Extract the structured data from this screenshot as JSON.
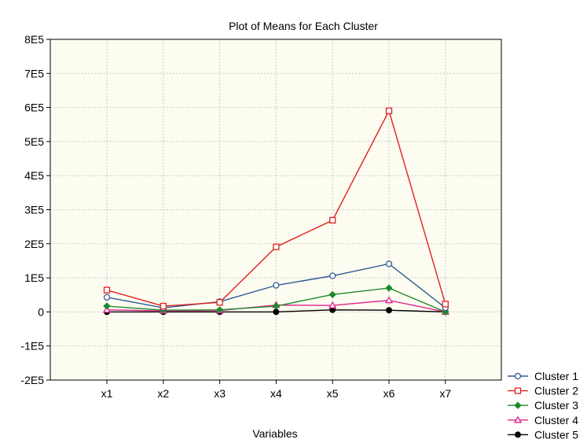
{
  "chart_data": {
    "type": "line",
    "title": "Plot of Means for Each Cluster",
    "xlabel": "Variables",
    "ylabel": "",
    "categories": [
      "x1",
      "x2",
      "x3",
      "x4",
      "x5",
      "x6",
      "x7"
    ],
    "ylim": [
      -200000,
      800000
    ],
    "yticks": [
      -200000,
      -100000,
      0,
      100000,
      200000,
      300000,
      400000,
      500000,
      600000,
      700000,
      800000
    ],
    "ytick_labels": [
      "-2E5",
      "-1E5",
      "0",
      "1E5",
      "2E5",
      "3E5",
      "4E5",
      "5E5",
      "6E5",
      "7E5",
      "8E5"
    ],
    "grid": true,
    "legend_position": "bottom-right outside",
    "plot_background": "#fcfcf0",
    "series": [
      {
        "name": "Cluster  1",
        "color": "#2e5a95",
        "marker": "circle-open",
        "values": [
          43000,
          12000,
          30000,
          78000,
          106000,
          141000,
          12000
        ]
      },
      {
        "name": "Cluster  2",
        "color": "#e02020",
        "marker": "square-open",
        "values": [
          64000,
          17000,
          28000,
          191000,
          269000,
          590000,
          23000
        ]
      },
      {
        "name": "Cluster  3",
        "color": "#1f8a2c",
        "marker": "diamond",
        "values": [
          17000,
          5000,
          6000,
          17000,
          51000,
          70000,
          0
        ]
      },
      {
        "name": "Cluster  4",
        "color": "#e0208c",
        "marker": "triangle-open",
        "values": [
          6000,
          3000,
          4000,
          20000,
          19000,
          34000,
          0
        ]
      },
      {
        "name": "Cluster  5",
        "color": "#000000",
        "marker": "circle-filled",
        "values": [
          0,
          0,
          0,
          0,
          6000,
          5000,
          0
        ]
      }
    ]
  }
}
